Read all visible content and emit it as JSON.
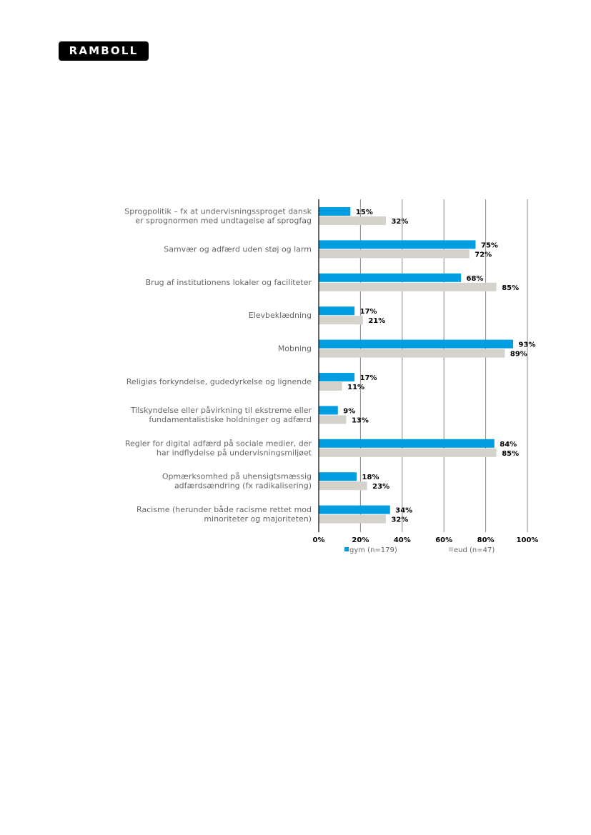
{
  "logo": {
    "text": "RAMBOLL"
  },
  "colors": {
    "gym": "#009ee0",
    "eud": "#d4d2ca",
    "grid": "#888888",
    "axis": "#000000"
  },
  "chart_data": {
    "type": "bar",
    "orientation": "horizontal",
    "categories": [
      [
        "Sprogpolitik – fx at undervisningssproget dansk",
        "er sprognormen med undtagelse af sprogfag"
      ],
      [
        "Samvær og adfærd uden støj og larm"
      ],
      [
        "Brug af institutionens lokaler og faciliteter"
      ],
      [
        "Elevbeklædning"
      ],
      [
        "Mobning"
      ],
      [
        "Religiøs forkyndelse, gudedyrkelse og lignende"
      ],
      [
        "Tilskyndelse eller påvirkning til ekstreme eller",
        "fundamentalistiske holdninger og adfærd"
      ],
      [
        "Regler for digital adfærd på sociale medier, der",
        "har indflydelse på undervisningsmiljøet"
      ],
      [
        "Opmærksomhed på uhensigtsmæssig",
        "adfærdsændring (fx radikalisering)"
      ],
      [
        "Racisme (herunder både racisme rettet mod",
        "minoriteter og majoriteten)"
      ]
    ],
    "series": [
      {
        "name": "gym (n=179)",
        "values": [
          15,
          75,
          68,
          17,
          93,
          17,
          9,
          84,
          18,
          34
        ]
      },
      {
        "name": "eud (n=47)",
        "values": [
          32,
          72,
          85,
          21,
          89,
          11,
          13,
          85,
          23,
          32
        ]
      }
    ],
    "value_suffix": "%",
    "xlim": [
      0,
      100
    ],
    "xticks": [
      0,
      20,
      40,
      60,
      80,
      100
    ],
    "xtick_labels": [
      "0%",
      "20%",
      "40%",
      "60%",
      "80%",
      "100%"
    ],
    "grid": true,
    "legend": "bottom"
  }
}
